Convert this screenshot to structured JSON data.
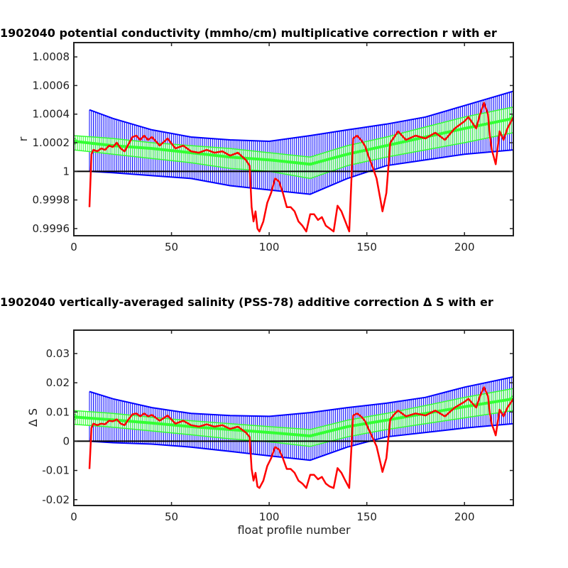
{
  "chart_data": [
    {
      "type": "line",
      "title": "1902040 potential conductivity (mmho/cm) multiplicative correction r with er",
      "xlabel": "",
      "ylabel": "r",
      "xlim": [
        0,
        225
      ],
      "ylim": [
        0.99955,
        1.0009
      ],
      "xticks": [
        0,
        50,
        100,
        150,
        200
      ],
      "xtick_labels": [
        "0",
        "50",
        "100",
        "150",
        "200"
      ],
      "yticks": [
        0.9996,
        0.9998,
        1,
        1.0002,
        1.0004,
        1.0006,
        1.0008
      ],
      "ytick_labels": [
        "0.9996",
        "0.9998",
        "1",
        "1.0002",
        "1.0004",
        "1.0006",
        "1.0008"
      ],
      "reference_line": {
        "y": 1,
        "color": "#000000"
      },
      "series": [
        {
          "role": "error_envelope",
          "color": "#0000ff",
          "x": [
            8,
            20,
            40,
            60,
            80,
            100,
            121,
            140,
            160,
            180,
            200,
            225
          ],
          "lower": [
            1.0,
            0.99999,
            0.99997,
            0.99995,
            0.9999,
            0.99987,
            0.99984,
            0.99995,
            1.00004,
            1.00008,
            1.00012,
            1.00015
          ],
          "upper": [
            1.00043,
            1.00037,
            1.00029,
            1.00024,
            1.00022,
            1.00021,
            1.00025,
            1.00029,
            1.00033,
            1.00038,
            1.00046,
            1.00056
          ]
        },
        {
          "role": "mapped_correction",
          "color": "#33ff33",
          "x": [
            0,
            20,
            40,
            60,
            80,
            100,
            121,
            140,
            160,
            180,
            200,
            225
          ],
          "mean": [
            1.00021,
            1.00018,
            1.00016,
            1.00013,
            1.0001,
            1.00008,
            1.00005,
            1.00012,
            1.00018,
            1.00024,
            1.0003,
            1.00037
          ],
          "lower": [
            1.00015,
            1.00012,
            1.00009,
            1.00006,
            1.00002,
            1.0,
            0.99995,
            1.00004,
            1.0001,
            1.00015,
            1.0002,
            1.00027
          ],
          "upper": [
            1.00025,
            1.00023,
            1.0002,
            1.00018,
            1.00016,
            1.00013,
            1.0001,
            1.00018,
            1.00024,
            1.00031,
            1.00038,
            1.00045
          ]
        },
        {
          "role": "profile_correction",
          "color": "#ff0000",
          "x": [
            8,
            9,
            10,
            12,
            14,
            16,
            18,
            20,
            22,
            24,
            26,
            28,
            30,
            32,
            34,
            36,
            38,
            40,
            44,
            48,
            52,
            56,
            60,
            64,
            68,
            72,
            76,
            80,
            84,
            88,
            90,
            91,
            92,
            93,
            94,
            95,
            97,
            99,
            101,
            103,
            105,
            107,
            109,
            111,
            113,
            115,
            117,
            119,
            121,
            123,
            125,
            127,
            129,
            131,
            133,
            135,
            137,
            139,
            141,
            143,
            145,
            147,
            149,
            151,
            153,
            155,
            157,
            158,
            160,
            162,
            164,
            166,
            168,
            170,
            175,
            180,
            185,
            190,
            195,
            200,
            202,
            204,
            206,
            208,
            210,
            212,
            213,
            214,
            215,
            216,
            218,
            220,
            222,
            225
          ],
          "values": [
            0.99975,
            1.00012,
            1.00015,
            1.00014,
            1.00016,
            1.00015,
            1.00018,
            1.00017,
            1.0002,
            1.00016,
            1.00014,
            1.00019,
            1.00024,
            1.00025,
            1.00022,
            1.00025,
            1.00022,
            1.00024,
            1.00018,
            1.00023,
            1.00016,
            1.00018,
            1.00014,
            1.00013,
            1.00015,
            1.00013,
            1.00014,
            1.00011,
            1.00013,
            1.00008,
            1.00004,
            0.99975,
            0.99965,
            0.99972,
            0.9996,
            0.99958,
            0.99965,
            0.99978,
            0.99985,
            0.99995,
            0.99993,
            0.99985,
            0.99975,
            0.99975,
            0.99972,
            0.99965,
            0.99962,
            0.99958,
            0.9997,
            0.9997,
            0.99966,
            0.99968,
            0.99962,
            0.9996,
            0.99958,
            0.99976,
            0.99972,
            0.99965,
            0.99958,
            1.00023,
            1.00025,
            1.00022,
            1.00018,
            1.0001,
            1.00003,
            0.99995,
            0.9998,
            0.99972,
            0.99985,
            1.0002,
            1.00024,
            1.00028,
            1.00025,
            1.00022,
            1.00025,
            1.00023,
            1.00027,
            1.00022,
            1.0003,
            1.00035,
            1.00038,
            1.00034,
            1.0003,
            1.0004,
            1.00048,
            1.0004,
            1.00025,
            1.00015,
            1.0001,
            1.00005,
            1.00028,
            1.00022,
            1.0003,
            1.00038
          ]
        }
      ]
    },
    {
      "type": "line",
      "title": "1902040 vertically-averaged salinity (PSS-78) additive correction Δ S with er",
      "xlabel": "float profile number",
      "ylabel": "Δ S",
      "xlim": [
        0,
        225
      ],
      "ylim": [
        -0.022,
        0.038
      ],
      "xticks": [
        0,
        50,
        100,
        150,
        200
      ],
      "xtick_labels": [
        "0",
        "50",
        "100",
        "150",
        "200"
      ],
      "yticks": [
        -0.02,
        -0.01,
        0,
        0.01,
        0.02,
        0.03
      ],
      "ytick_labels": [
        "-0.02",
        "-0.01",
        "0",
        "0.01",
        "0.02",
        "0.03"
      ],
      "reference_line": {
        "y": 0,
        "color": "#000000"
      },
      "series": [
        {
          "role": "error_envelope",
          "color": "#0000ff",
          "x": [
            8,
            20,
            40,
            60,
            80,
            100,
            121,
            140,
            160,
            180,
            200,
            225
          ],
          "lower": [
            0.0,
            -0.0005,
            -0.001,
            -0.002,
            -0.0035,
            -0.005,
            -0.0065,
            -0.002,
            0.0015,
            0.003,
            0.0045,
            0.006
          ],
          "upper": [
            0.017,
            0.0145,
            0.0115,
            0.0095,
            0.0088,
            0.0085,
            0.0098,
            0.0115,
            0.013,
            0.015,
            0.0185,
            0.022
          ]
        },
        {
          "role": "mapped_correction",
          "color": "#33ff33",
          "x": [
            0,
            20,
            40,
            60,
            80,
            100,
            121,
            140,
            160,
            180,
            200,
            225
          ],
          "mean": [
            0.0083,
            0.0073,
            0.0062,
            0.005,
            0.004,
            0.003,
            0.0018,
            0.005,
            0.0072,
            0.0095,
            0.0118,
            0.0145
          ],
          "lower": [
            0.0058,
            0.0048,
            0.0035,
            0.0022,
            0.0008,
            -0.0002,
            -0.0018,
            0.0015,
            0.004,
            0.006,
            0.008,
            0.0105
          ],
          "upper": [
            0.0105,
            0.0095,
            0.0082,
            0.007,
            0.006,
            0.005,
            0.004,
            0.0072,
            0.0095,
            0.0122,
            0.015,
            0.018
          ]
        },
        {
          "role": "profile_correction",
          "color": "#ff0000",
          "x": [
            8,
            9,
            10,
            12,
            14,
            16,
            18,
            20,
            22,
            24,
            26,
            28,
            30,
            32,
            34,
            36,
            38,
            40,
            44,
            48,
            52,
            56,
            60,
            64,
            68,
            72,
            76,
            80,
            84,
            88,
            90,
            91,
            92,
            93,
            94,
            95,
            97,
            99,
            101,
            103,
            105,
            107,
            109,
            111,
            113,
            115,
            117,
            119,
            121,
            123,
            125,
            127,
            129,
            131,
            133,
            135,
            137,
            139,
            141,
            143,
            145,
            147,
            149,
            151,
            153,
            155,
            157,
            158,
            160,
            162,
            164,
            166,
            168,
            170,
            175,
            180,
            185,
            190,
            195,
            200,
            202,
            204,
            206,
            208,
            210,
            212,
            213,
            214,
            215,
            216,
            218,
            220,
            222,
            225
          ],
          "values": [
            -0.0095,
            0.0045,
            0.006,
            0.0055,
            0.006,
            0.0058,
            0.007,
            0.0068,
            0.0075,
            0.006,
            0.0055,
            0.0075,
            0.0092,
            0.0095,
            0.0085,
            0.0095,
            0.0085,
            0.009,
            0.007,
            0.0088,
            0.006,
            0.007,
            0.0055,
            0.005,
            0.0058,
            0.005,
            0.0055,
            0.0042,
            0.005,
            0.003,
            0.0015,
            -0.0095,
            -0.0135,
            -0.0108,
            -0.0155,
            -0.016,
            -0.0135,
            -0.0085,
            -0.0058,
            -0.002,
            -0.0028,
            -0.0058,
            -0.0095,
            -0.0095,
            -0.0108,
            -0.0135,
            -0.0145,
            -0.016,
            -0.0115,
            -0.0115,
            -0.013,
            -0.0122,
            -0.0145,
            -0.0155,
            -0.016,
            -0.0092,
            -0.0108,
            -0.0135,
            -0.016,
            0.0088,
            0.0095,
            0.0085,
            0.007,
            0.004,
            0.0012,
            -0.0018,
            -0.0075,
            -0.0105,
            -0.0058,
            0.0075,
            0.0092,
            0.0105,
            0.0095,
            0.0085,
            0.0095,
            0.0088,
            0.0105,
            0.0085,
            0.0115,
            0.0135,
            0.0145,
            0.013,
            0.0115,
            0.0155,
            0.0185,
            0.0155,
            0.0095,
            0.0058,
            0.004,
            0.002,
            0.0108,
            0.0085,
            0.0115,
            0.0145
          ]
        }
      ]
    }
  ]
}
